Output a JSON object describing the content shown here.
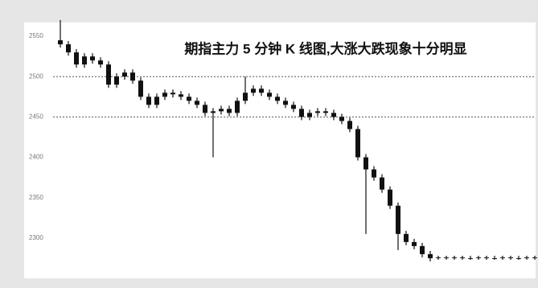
{
  "chart_data": {
    "type": "candlestick",
    "title": "期指主力 5 分钟 K 线图,大涨大跌现象十分明显",
    "color": "#111111",
    "open": [
      2545,
      2540,
      2530,
      2515,
      2525,
      2520,
      2515,
      2490,
      2500,
      2505,
      2495,
      2475,
      2465,
      2475,
      2480,
      2478,
      2475,
      2470,
      2465,
      2455,
      2457,
      2460,
      2455,
      2470,
      2480,
      2485,
      2480,
      2475,
      2470,
      2465,
      2460,
      2450,
      2455,
      2457,
      2455,
      2450,
      2445,
      2435,
      2400,
      2385,
      2375,
      2360,
      2340,
      2305,
      2295,
      2290,
      2280,
      2275,
      2276,
      2275,
      2276,
      2275,
      2275,
      2276,
      2275,
      2275,
      2276,
      2275,
      2275,
      2276
    ],
    "high": [
      2570,
      2544,
      2534,
      2529,
      2529,
      2524,
      2519,
      2504,
      2509,
      2509,
      2499,
      2479,
      2479,
      2484,
      2484,
      2482,
      2479,
      2474,
      2469,
      2461,
      2464,
      2464,
      2474,
      2500,
      2489,
      2489,
      2484,
      2479,
      2474,
      2469,
      2464,
      2459,
      2461,
      2461,
      2459,
      2454,
      2449,
      2439,
      2404,
      2389,
      2379,
      2364,
      2344,
      2309,
      2299,
      2294,
      2284,
      2278,
      2278,
      2278,
      2278,
      2278,
      2278,
      2278,
      2278,
      2278,
      2278,
      2278,
      2278,
      2278
    ],
    "low": [
      2536,
      2526,
      2511,
      2511,
      2516,
      2511,
      2486,
      2486,
      2496,
      2491,
      2471,
      2461,
      2461,
      2471,
      2474,
      2471,
      2466,
      2461,
      2451,
      2400,
      2453,
      2451,
      2451,
      2466,
      2476,
      2476,
      2471,
      2466,
      2461,
      2456,
      2446,
      2446,
      2451,
      2451,
      2446,
      2441,
      2431,
      2396,
      2305,
      2371,
      2356,
      2336,
      2285,
      2291,
      2286,
      2276,
      2271,
      2273,
      2273,
      2273,
      2273,
      2273,
      2273,
      2273,
      2273,
      2273,
      2273,
      2273,
      2273,
      2273
    ],
    "close": [
      2540,
      2530,
      2515,
      2525,
      2520,
      2515,
      2490,
      2500,
      2505,
      2495,
      2475,
      2465,
      2475,
      2480,
      2478,
      2475,
      2470,
      2465,
      2455,
      2457,
      2460,
      2455,
      2470,
      2480,
      2485,
      2480,
      2475,
      2470,
      2465,
      2460,
      2450,
      2455,
      2457,
      2455,
      2450,
      2445,
      2435,
      2400,
      2385,
      2375,
      2360,
      2340,
      2305,
      2295,
      2290,
      2280,
      2275,
      2276,
      2275,
      2276,
      2275,
      2275,
      2276,
      2275,
      2275,
      2276,
      2275,
      2275,
      2276,
      2275
    ],
    "ylim": [
      2250,
      2567
    ],
    "yticks": [
      2300,
      2350,
      2400,
      2450,
      2500,
      2550
    ],
    "reference_lines": [
      2500,
      2450
    ]
  }
}
